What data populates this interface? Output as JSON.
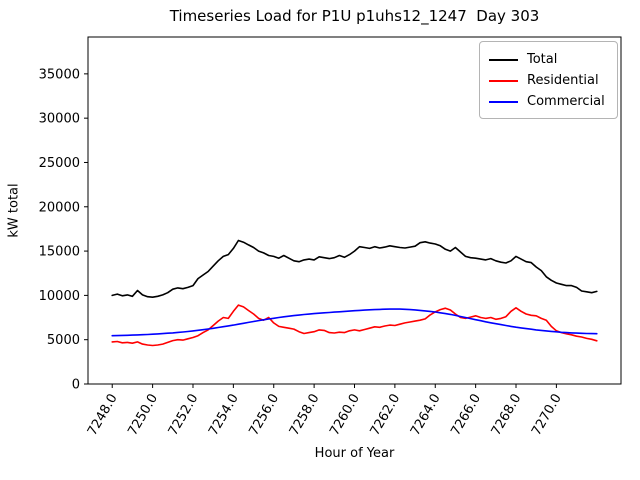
{
  "chart_data": {
    "type": "line",
    "title": "Timeseries Load for P1U p1uhs12_1247  Day 303",
    "xlabel": "Hour of Year",
    "ylabel": "kW total",
    "grid": false,
    "legend_position": "upper right",
    "xlim": [
      7246.8,
      7273.2
    ],
    "ylim": [
      0,
      39160
    ],
    "xticks": [
      7248,
      7250,
      7252,
      7254,
      7256,
      7258,
      7260,
      7262,
      7264,
      7266,
      7268,
      7270
    ],
    "xtick_labels": [
      "7248.0",
      "7250.0",
      "7252.0",
      "7254.0",
      "7256.0",
      "7258.0",
      "7260.0",
      "7262.0",
      "7264.0",
      "7266.0",
      "7268.0",
      "7270.0"
    ],
    "yticks": [
      0,
      5000,
      10000,
      15000,
      20000,
      25000,
      30000,
      35000
    ],
    "ytick_labels": [
      "0",
      "5000",
      "10000",
      "15000",
      "20000",
      "25000",
      "30000",
      "35000"
    ],
    "x_start": 7248.0,
    "x_step": 0.25,
    "n_points": 97,
    "series": [
      {
        "name": "Total",
        "color": "#000000",
        "values": [
          10000,
          10150,
          9950,
          10050,
          9900,
          10550,
          10050,
          9850,
          9800,
          9900,
          10050,
          10300,
          10700,
          10850,
          10750,
          10900,
          11100,
          11900,
          12300,
          12700,
          13300,
          13900,
          14400,
          14600,
          15300,
          16200,
          16000,
          15700,
          15400,
          15000,
          14800,
          14500,
          14400,
          14200,
          14500,
          14200,
          13900,
          13800,
          14000,
          14100,
          14000,
          14350,
          14250,
          14150,
          14250,
          14500,
          14300,
          14600,
          15000,
          15500,
          15400,
          15300,
          15500,
          15350,
          15450,
          15600,
          15500,
          15400,
          15350,
          15450,
          15550,
          15950,
          16050,
          15900,
          15800,
          15600,
          15200,
          15000,
          15400,
          14900,
          14400,
          14250,
          14200,
          14100,
          14000,
          14150,
          13900,
          13750,
          13650,
          13900,
          14400,
          14100,
          13800,
          13700,
          13200,
          12800,
          12100,
          11700,
          11400,
          11250,
          11100,
          11100,
          10900,
          10500,
          10400,
          10300,
          10450
        ]
      },
      {
        "name": "Residential",
        "color": "#ff0000",
        "values": [
          4750,
          4800,
          4650,
          4700,
          4600,
          4750,
          4500,
          4400,
          4350,
          4400,
          4500,
          4700,
          4900,
          5000,
          4950,
          5100,
          5250,
          5450,
          5800,
          6100,
          6600,
          7100,
          7500,
          7400,
          8200,
          8900,
          8700,
          8300,
          7900,
          7400,
          7200,
          7500,
          6900,
          6500,
          6400,
          6300,
          6200,
          5900,
          5700,
          5800,
          5900,
          6100,
          6050,
          5800,
          5750,
          5850,
          5800,
          6000,
          6100,
          6000,
          6150,
          6300,
          6450,
          6400,
          6550,
          6650,
          6600,
          6750,
          6900,
          7000,
          7100,
          7200,
          7350,
          7800,
          8150,
          8400,
          8550,
          8350,
          7900,
          7500,
          7400,
          7550,
          7700,
          7500,
          7400,
          7500,
          7300,
          7400,
          7600,
          8200,
          8600,
          8200,
          7900,
          7750,
          7700,
          7400,
          7200,
          6500,
          6000,
          5800,
          5650,
          5550,
          5400,
          5300,
          5150,
          5050,
          4880
        ]
      },
      {
        "name": "Commercial",
        "color": "#0000ff",
        "values": [
          5450,
          5460,
          5480,
          5500,
          5520,
          5540,
          5560,
          5590,
          5620,
          5650,
          5690,
          5730,
          5770,
          5820,
          5870,
          5930,
          5990,
          6060,
          6130,
          6210,
          6290,
          6380,
          6470,
          6560,
          6650,
          6750,
          6850,
          6950,
          7050,
          7150,
          7240,
          7330,
          7420,
          7500,
          7580,
          7650,
          7720,
          7780,
          7840,
          7890,
          7940,
          7990,
          8030,
          8070,
          8110,
          8150,
          8190,
          8230,
          8270,
          8310,
          8340,
          8370,
          8400,
          8420,
          8440,
          8450,
          8460,
          8450,
          8430,
          8400,
          8360,
          8310,
          8250,
          8190,
          8120,
          8040,
          7950,
          7850,
          7740,
          7620,
          7500,
          7380,
          7260,
          7140,
          7020,
          6910,
          6800,
          6700,
          6600,
          6500,
          6410,
          6330,
          6250,
          6180,
          6110,
          6050,
          5990,
          5940,
          5890,
          5840,
          5800,
          5770,
          5740,
          5720,
          5700,
          5690,
          5680
        ]
      }
    ]
  }
}
